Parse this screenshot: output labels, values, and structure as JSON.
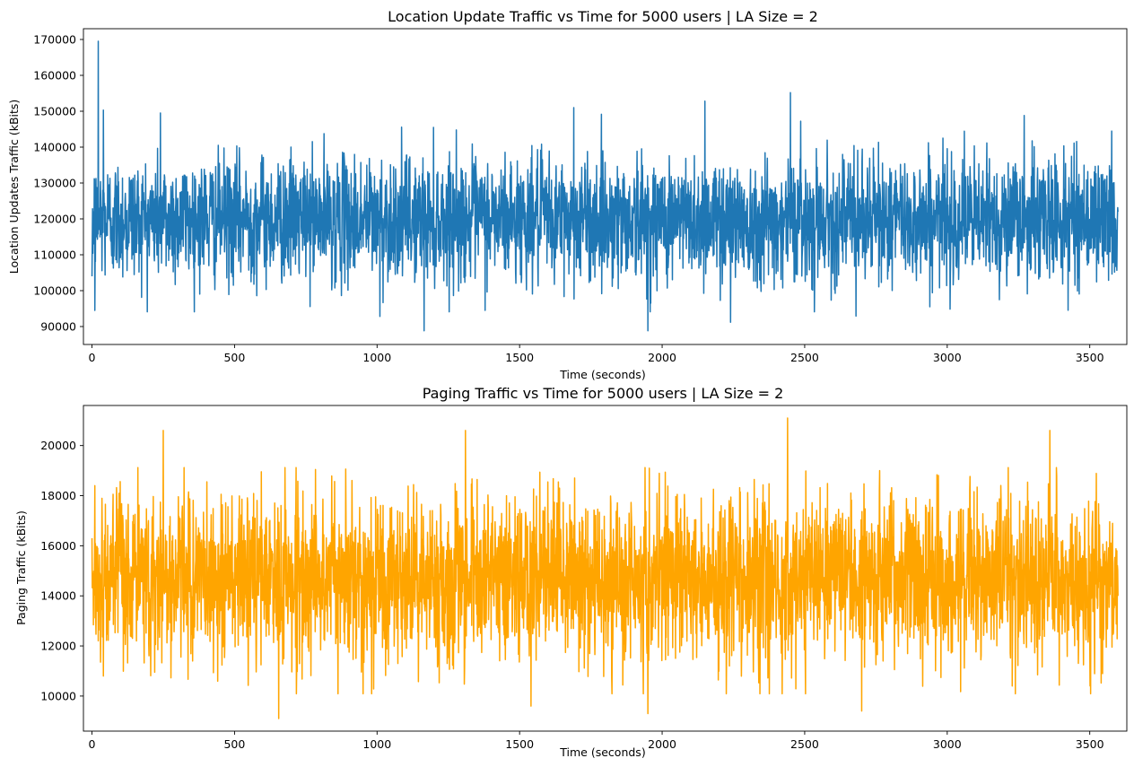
{
  "chart_data": [
    {
      "type": "line",
      "title": "Location Update Traffic vs Time for 5000 users | LA Size = 2",
      "xlabel": "Time (seconds)",
      "ylabel": "Location Updates Traffic (kBits)",
      "xlim": [
        -30,
        3630
      ],
      "ylim": [
        85000,
        173000
      ],
      "xticks": [
        0,
        500,
        1000,
        1500,
        2000,
        2500,
        3000,
        3500
      ],
      "yticks": [
        90000,
        100000,
        110000,
        120000,
        130000,
        140000,
        150000,
        160000,
        170000
      ],
      "xtick_labels": [
        "0",
        "500",
        "1000",
        "1500",
        "2000",
        "2500",
        "3000",
        "3500"
      ],
      "ytick_labels": [
        "90000",
        "100000",
        "110000",
        "120000",
        "130000",
        "140000",
        "150000",
        "160000",
        "170000"
      ],
      "color": "#1f77b4",
      "x_range": [
        0,
        3599
      ],
      "stats": {
        "mean": 120000,
        "std": 8500,
        "min": 89000,
        "max": 169500
      },
      "notable_points": [
        {
          "x": 0,
          "y": 104000
        },
        {
          "x": 10,
          "y": 94500
        },
        {
          "x": 15,
          "y": 115000
        },
        {
          "x": 22,
          "y": 169500
        },
        {
          "x": 40,
          "y": 150300
        },
        {
          "x": 240,
          "y": 149500
        },
        {
          "x": 1010,
          "y": 92800
        },
        {
          "x": 1165,
          "y": 88800
        },
        {
          "x": 1690,
          "y": 151000
        },
        {
          "x": 1950,
          "y": 88800
        },
        {
          "x": 2150,
          "y": 152800
        },
        {
          "x": 2240,
          "y": 91200
        },
        {
          "x": 2450,
          "y": 155200
        },
        {
          "x": 2680,
          "y": 92900
        },
        {
          "x": 3270,
          "y": 148800
        },
        {
          "x": 3600,
          "y": 122000
        }
      ]
    },
    {
      "type": "line",
      "title": "Paging Traffic vs Time for 5000 users | LA Size = 2",
      "xlabel": "Time (seconds)",
      "ylabel": "Paging Traffic (kBits)",
      "xlim": [
        -30,
        3630
      ],
      "ylim": [
        8600,
        21600
      ],
      "xticks": [
        0,
        500,
        1000,
        1500,
        2000,
        2500,
        3000,
        3500
      ],
      "yticks": [
        10000,
        12000,
        14000,
        16000,
        18000,
        20000
      ],
      "xtick_labels": [
        "0",
        "500",
        "1000",
        "1500",
        "2000",
        "2500",
        "3000",
        "3500"
      ],
      "ytick_labels": [
        "10000",
        "12000",
        "14000",
        "16000",
        "18000",
        "20000"
      ],
      "color": "#ffa500",
      "x_range": [
        0,
        3599
      ],
      "stats": {
        "mean": 14700,
        "std": 1650,
        "min": 9100,
        "max": 21100
      },
      "notable_points": [
        {
          "x": 0,
          "y": 16300
        },
        {
          "x": 10,
          "y": 18400
        },
        {
          "x": 40,
          "y": 10800
        },
        {
          "x": 250,
          "y": 20600
        },
        {
          "x": 655,
          "y": 9100
        },
        {
          "x": 1310,
          "y": 20600
        },
        {
          "x": 1540,
          "y": 9600
        },
        {
          "x": 1950,
          "y": 9300
        },
        {
          "x": 2440,
          "y": 21100
        },
        {
          "x": 2700,
          "y": 9400
        },
        {
          "x": 3360,
          "y": 20600
        },
        {
          "x": 3600,
          "y": 14000
        }
      ]
    }
  ]
}
